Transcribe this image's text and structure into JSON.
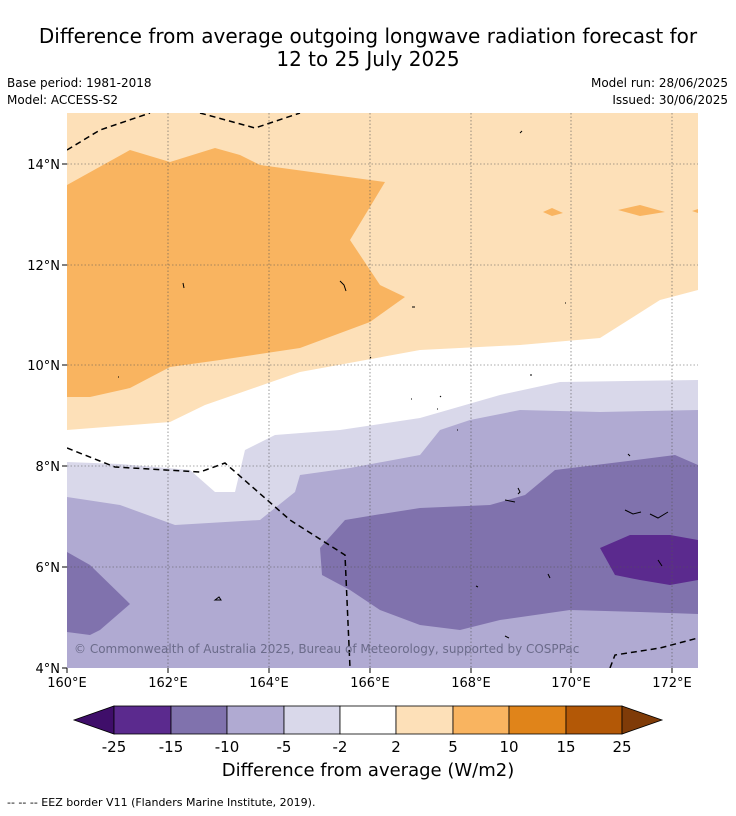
{
  "title_line1": "Difference from average outgoing longwave radiation forecast for",
  "title_line2": "12 to 25 July 2025",
  "base_period": "Base period: 1981-2018",
  "model": "Model: ACCESS-S2",
  "model_run": "Model run: 28/06/2025",
  "issued": "Issued: 30/06/2025",
  "lat_labels": [
    "14°N",
    "12°N",
    "10°N",
    "8°N",
    "6°N",
    "4°N"
  ],
  "lon_labels": [
    "160°E",
    "162°E",
    "164°E",
    "166°E",
    "168°E",
    "170°E",
    "172°E"
  ],
  "copyright": "© Commonwealth of Australia 2025, Bureau of Meteorology, supported by COSPPac",
  "colorbar": {
    "ticks": [
      "-25",
      "-15",
      "-10",
      "-5",
      "-2",
      "2",
      "5",
      "10",
      "15",
      "25"
    ],
    "colors": [
      "#3f0e6a",
      "#5b2a8e",
      "#8072ad",
      "#b0aad2",
      "#d9d8ea",
      "#ffffff",
      "#fde0b8",
      "#f9b460",
      "#e0841a",
      "#b35806",
      "#7f3b08"
    ],
    "label": "Difference from average (W/m2)"
  },
  "footer": "--  --  -- EEZ border V11 (Flanders Marine Institute, 2019)."
}
